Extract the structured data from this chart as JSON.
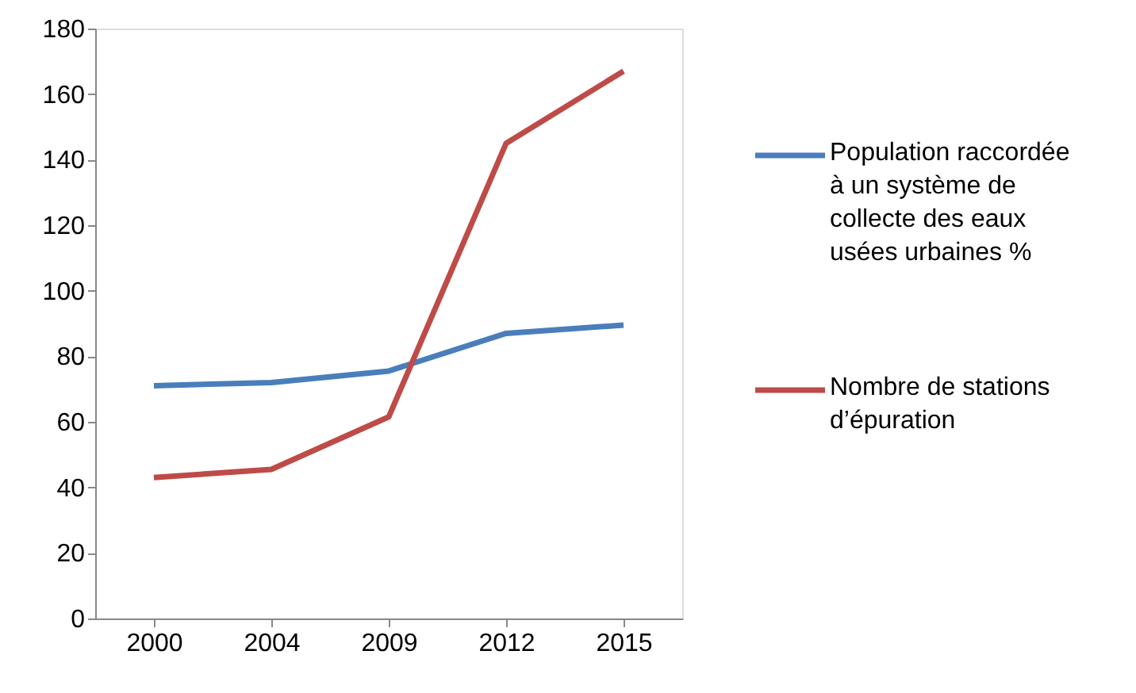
{
  "chart_data": {
    "type": "line",
    "categories": [
      "2000",
      "2004",
      "2009",
      "2012",
      "2015"
    ],
    "series": [
      {
        "name": "Population raccordée à un système de collecte des eaux usées urbaines %",
        "color": "#4a7ebb",
        "values": [
          71,
          72,
          75.5,
          87,
          89.5
        ]
      },
      {
        "name": "Nombre de stations d’épuration",
        "color": "#be4b48",
        "values": [
          43,
          45.5,
          61.5,
          145,
          167
        ]
      }
    ],
    "ylim": [
      0,
      180
    ],
    "yticks": [
      0,
      20,
      40,
      60,
      80,
      100,
      120,
      140,
      160,
      180
    ],
    "grid": false,
    "legend": "right"
  }
}
